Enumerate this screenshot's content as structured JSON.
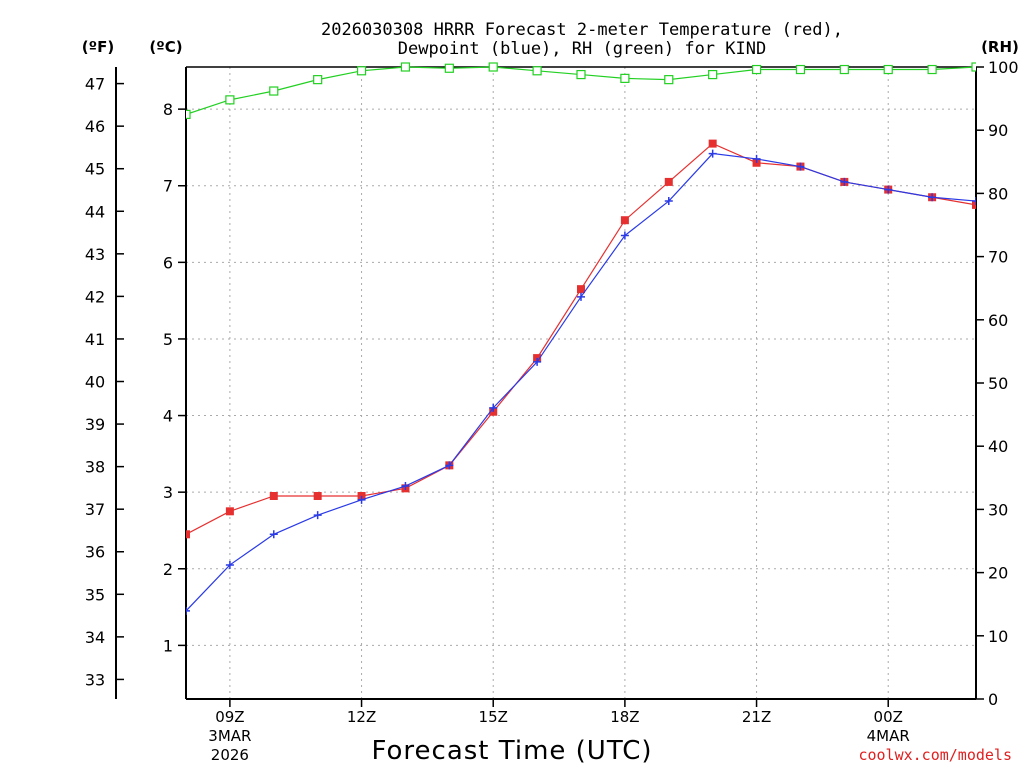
{
  "chart_data": {
    "type": "line",
    "title_line1": "2026030308 HRRR Forecast 2-meter Temperature (red),",
    "title_line2": "Dewpoint (blue), RH (green) for KIND",
    "left_outer_unit": "(ºF)",
    "left_inner_unit": "(ºC)",
    "right_unit": "(RH)",
    "xlabel": "Forecast Time (UTC)",
    "credit": "coolwx.com/models",
    "x_hours": [
      8,
      9,
      10,
      11,
      12,
      13,
      14,
      15,
      16,
      17,
      18,
      19,
      20,
      21,
      22,
      23,
      24,
      25,
      26
    ],
    "xlim": [
      8,
      26
    ],
    "x_ticks": [
      {
        "hour": 9,
        "label": "09Z",
        "sub1": "3MAR",
        "sub2": "2026"
      },
      {
        "hour": 12,
        "label": "12Z",
        "sub1": "",
        "sub2": ""
      },
      {
        "hour": 15,
        "label": "15Z",
        "sub1": "",
        "sub2": ""
      },
      {
        "hour": 18,
        "label": "18Z",
        "sub1": "",
        "sub2": ""
      },
      {
        "hour": 21,
        "label": "21Z",
        "sub1": "",
        "sub2": ""
      },
      {
        "hour": 24,
        "label": "00Z",
        "sub1": "4MAR",
        "sub2": ""
      }
    ],
    "celsius_lim": [
      0.3,
      8.55
    ],
    "celsius_ticks": [
      "1",
      "2",
      "3",
      "4",
      "5",
      "6",
      "7",
      "8"
    ],
    "fahrenheit_ticks": [
      "33",
      "34",
      "35",
      "36",
      "37",
      "38",
      "39",
      "40",
      "41",
      "42",
      "43",
      "44",
      "45",
      "46",
      "47"
    ],
    "rh_lim": [
      0,
      100
    ],
    "rh_ticks": [
      "0",
      "10",
      "20",
      "30",
      "40",
      "50",
      "60",
      "70",
      "80",
      "90",
      "100"
    ],
    "series": [
      {
        "name": "Temperature",
        "color": "#e63030",
        "marker": "square",
        "values": [
          2.45,
          2.75,
          2.95,
          2.95,
          2.95,
          3.05,
          3.35,
          4.05,
          4.75,
          5.65,
          6.55,
          7.05,
          7.55,
          7.3,
          7.25,
          7.05,
          6.95,
          6.85,
          6.75
        ]
      },
      {
        "name": "Dewpoint",
        "color": "#2a3ae6",
        "marker": "plus",
        "values": [
          1.45,
          2.05,
          2.45,
          2.7,
          2.9,
          3.08,
          3.35,
          4.1,
          4.7,
          5.55,
          6.35,
          6.8,
          7.42,
          7.35,
          7.25,
          7.05,
          6.95,
          6.85,
          6.8
        ]
      },
      {
        "name": "RH",
        "color": "#22d022",
        "marker": "open-square",
        "axis": "right",
        "values": [
          92.5,
          94.8,
          96.2,
          98.0,
          99.4,
          100.0,
          99.8,
          100.0,
          99.4,
          98.8,
          98.2,
          98.0,
          98.8,
          99.6,
          99.6,
          99.6,
          99.6,
          99.6,
          100.0
        ]
      }
    ]
  }
}
